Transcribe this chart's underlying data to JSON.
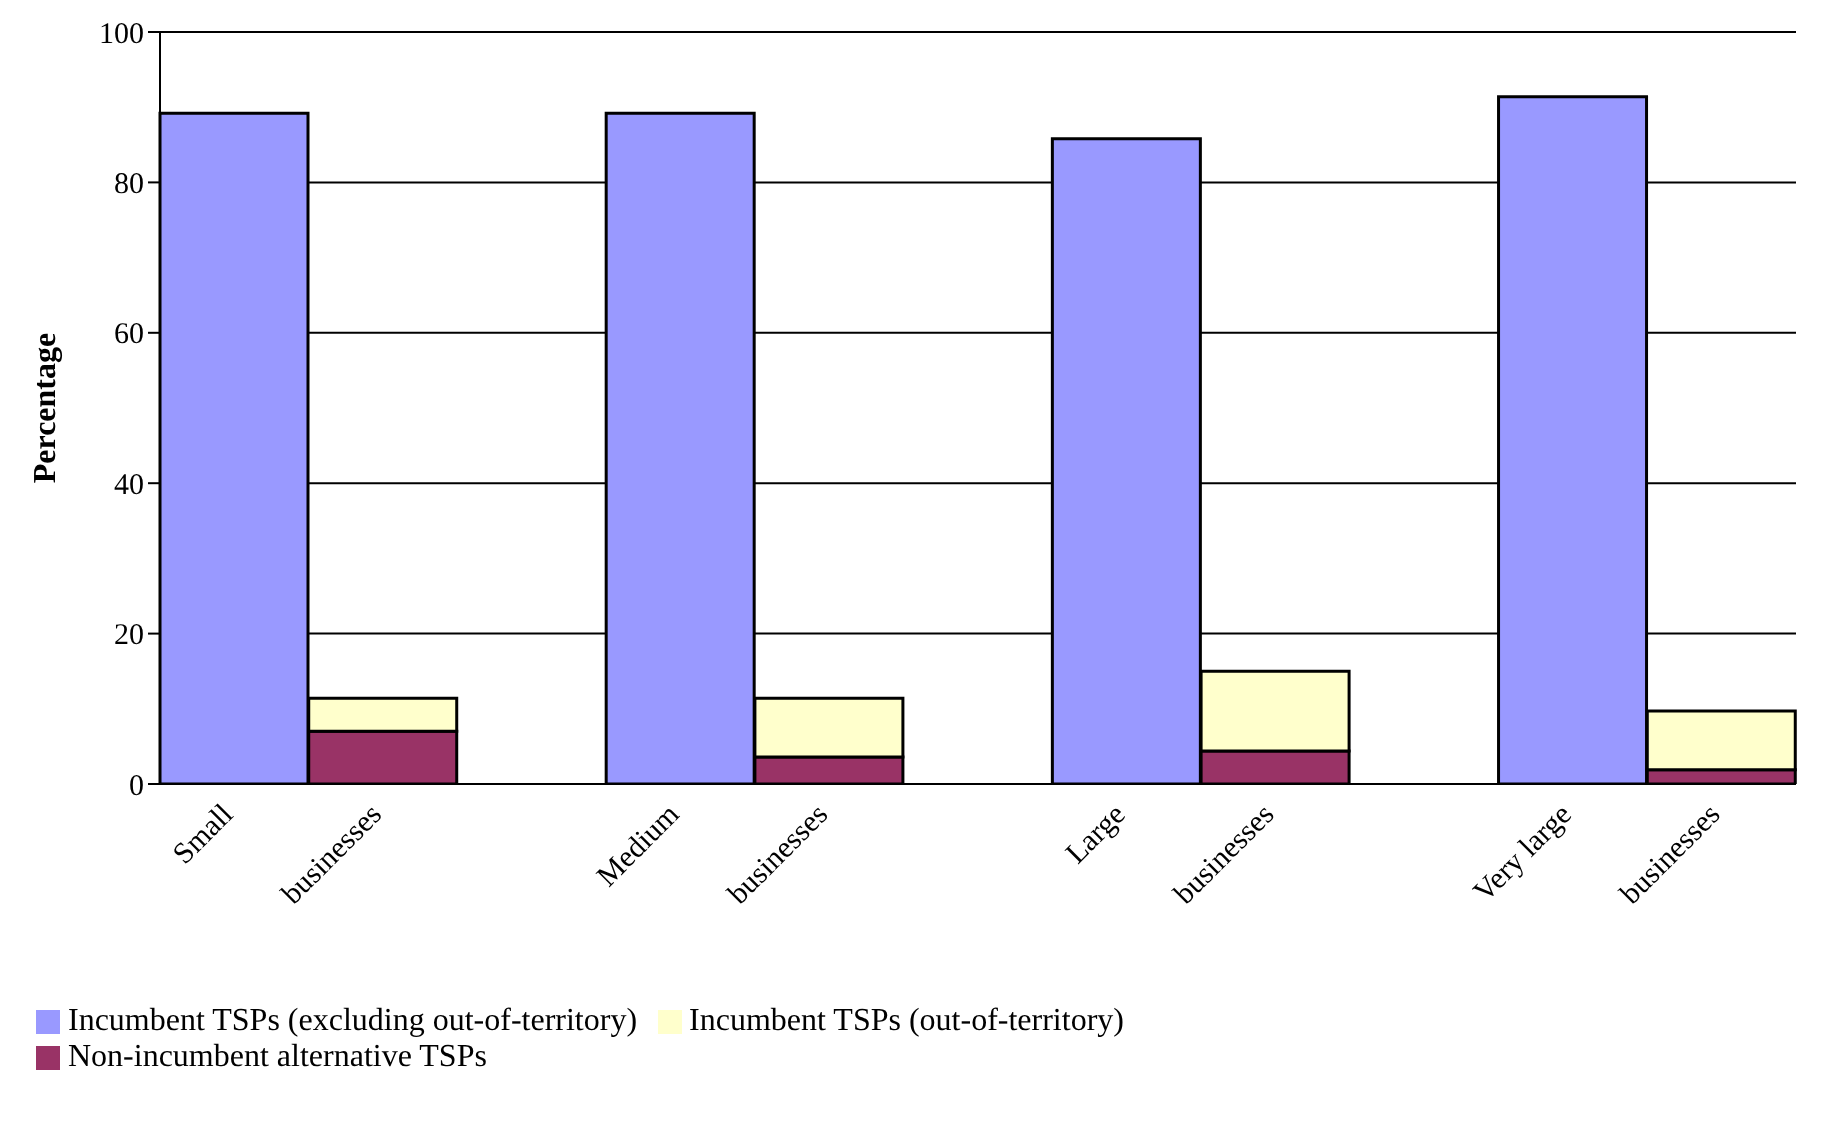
{
  "chart_data": {
    "type": "bar",
    "ylabel": "Percentage",
    "categories": [
      "Small",
      "businesses",
      null,
      "Medium",
      "businesses",
      null,
      "Large",
      "businesses",
      null,
      "Very large",
      "businesses"
    ],
    "stacked": true,
    "series": [
      {
        "name": "Incumbent TSPs (excluding out-of-territory)",
        "color": "#9999ff",
        "values": [
          89.2,
          null,
          null,
          89.2,
          null,
          null,
          85.8,
          null,
          null,
          91.4,
          null
        ]
      },
      {
        "name": "Non-incumbent alternative TSPs",
        "color": "#993366",
        "values": [
          null,
          7,
          null,
          null,
          3.6,
          null,
          null,
          4.4,
          null,
          null,
          1.9
        ]
      },
      {
        "name": "Incumbent TSPs (out-of-territory)",
        "color": "#ffffcc",
        "values": [
          null,
          4.4,
          null,
          null,
          7.8,
          null,
          null,
          10.6,
          null,
          null,
          7.8
        ]
      }
    ],
    "ylim": [
      0,
      100
    ],
    "yticks": [
      0,
      20,
      40,
      60,
      80,
      100
    ],
    "grid": "y",
    "legend": "bottom"
  }
}
